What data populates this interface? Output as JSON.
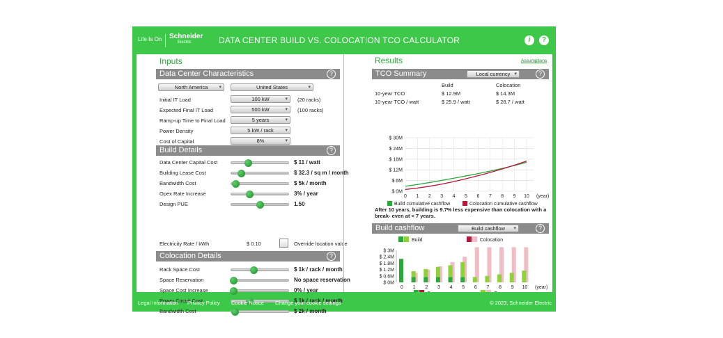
{
  "header": {
    "brand_tagline": "Life Is On",
    "brand_name": "Schneider",
    "brand_sub": "Electric",
    "title": "DATA CENTER BUILD VS. COLOCATION TCO CALCULATOR",
    "info_icon": "info-icon",
    "help_icon": "help-icon"
  },
  "inputs": {
    "title": "Inputs",
    "dc_section": "Data Center Characteristics",
    "region": "North America",
    "country": "United States",
    "rows": [
      {
        "label": "Initial IT Load",
        "value": "100 kW",
        "note": "(20 racks)"
      },
      {
        "label": "Expected Final IT Load",
        "value": "500 kW",
        "note": "(100 racks)"
      },
      {
        "label": "Ramp-up Time to Final Load",
        "value": "5 years",
        "note": ""
      },
      {
        "label": "Power Density",
        "value": "5 kW / rack",
        "note": ""
      },
      {
        "label": "Cost of Capital",
        "value": "8%",
        "note": ""
      }
    ],
    "build_section": "Build Details",
    "build_rows": [
      {
        "label": "Data Center Capital Cost",
        "value": "$ 11 / watt",
        "pos": 0.28
      },
      {
        "label": "Building Lease Cost",
        "value": "$ 32.3 / sq m / month",
        "pos": 0.15
      },
      {
        "label": "Bandwidth Cost",
        "value": "$ 5k / month",
        "pos": 0.04
      },
      {
        "label": "Opex Rate Increase",
        "value": "3% / year",
        "pos": 0.3
      },
      {
        "label": "Design PUE",
        "value": "1.50",
        "pos": 0.5
      }
    ],
    "electricity_label": "Electricity Rate / kWh",
    "electricity_value": "$ 0.10",
    "override_label": "Override location value",
    "colo_section": "Colocation Details",
    "colo_rows": [
      {
        "label": "Rack Space Cost",
        "value": "$ 1k  / rack / month",
        "pos": 0.38
      },
      {
        "label": "Space Reservation",
        "value": "No space reservation",
        "pos": 0.0
      },
      {
        "label": "Space Cost Increase",
        "value": "0% / year",
        "pos": 0.0
      },
      {
        "label": "Power Circuit Cost",
        "value": "$ 1k  / rack / month",
        "pos": 0.3
      },
      {
        "label": "Bandwidth Cost",
        "value": "$ 2k / month",
        "pos": 0.02
      }
    ]
  },
  "results": {
    "title": "Results",
    "assumptions_link": "Assumptions",
    "tco_section": "TCO Summary",
    "currency": "Local currency",
    "col_build": "Build",
    "col_colo": "Colocation",
    "tco_rows": [
      {
        "label": "10-year TCO",
        "build": "$ 12.9M",
        "colo": "$ 14.3M"
      },
      {
        "label": "10-year TCO / watt",
        "build": "$ 25.9 / watt",
        "colo": "$ 28.7 / watt"
      }
    ],
    "summary_text": "After 10 years, building is 9.7% less expensive than colocation with a break- even at < 7 years.",
    "cashflow_section": "Build cashflow",
    "cashflow_select": "Build cashflow"
  },
  "chart_data": [
    {
      "type": "line",
      "title": "",
      "x": [
        0,
        1,
        2,
        3,
        4,
        5,
        6,
        7,
        8,
        9,
        10
      ],
      "xlabel": "(year)",
      "yticks": [
        "$ 0M",
        "$ 6M",
        "$ 12M",
        "$ 18M",
        "$ 24M",
        "$ 30M"
      ],
      "ylim": [
        0,
        30
      ],
      "series": [
        {
          "name": "Build cumulative cashflow",
          "color": "#2aa83a",
          "values": [
            2.8,
            3.8,
            4.9,
            6.1,
            7.3,
            8.6,
            9.9,
            11.3,
            12.8,
            14.4,
            16.2
          ]
        },
        {
          "name": "Colocation cumulative cashflow",
          "color": "#b8143c",
          "values": [
            1.0,
            1.8,
            2.8,
            4.0,
            5.4,
            7.0,
            8.7,
            10.5,
            12.5,
            14.6,
            16.9
          ]
        }
      ],
      "legend": "bottom"
    },
    {
      "type": "bar",
      "title": "",
      "categories": [
        "0",
        "1",
        "2",
        "3",
        "4",
        "5",
        "6",
        "7",
        "8",
        "9",
        "10"
      ],
      "xlabel": "(year)",
      "yticks": [
        "$ 0M",
        "$ 0.6M",
        "$ 1.2M",
        "$ 1.8M",
        "$ 2.4M",
        "$ 3M"
      ],
      "ylim": [
        0,
        3
      ],
      "legend_top": [
        "Build",
        "Colocation"
      ],
      "legend_bottom": [
        "Capex",
        "Opex"
      ],
      "build_capex": [
        2.2,
        0.5,
        0.5,
        0.5,
        0.5,
        0.5,
        0,
        0,
        0,
        0,
        0
      ],
      "build_opex": [
        0,
        0.55,
        0.75,
        0.95,
        1.1,
        1.4,
        0.5,
        0.6,
        0.75,
        0.9,
        1.1
      ],
      "colo_capex": [
        0,
        0,
        0,
        0,
        0,
        0,
        0,
        0,
        0,
        0,
        0
      ],
      "colo_opex": [
        0,
        0.9,
        1.2,
        1.5,
        1.9,
        2.4,
        3.3,
        3.3,
        3.3,
        3.3,
        3.3
      ],
      "colors": {
        "build_capex": "#2aa83a",
        "build_opex": "#8fd13a",
        "colo_capex": "#b8143c",
        "colo_opex": "#f2bcc4"
      }
    }
  ],
  "footer": {
    "links": [
      "Legal Information",
      "Privacy Policy",
      "Cookie Notice",
      "Change your cookie settings"
    ],
    "copyright": "© 2023, Schneider Electric"
  }
}
